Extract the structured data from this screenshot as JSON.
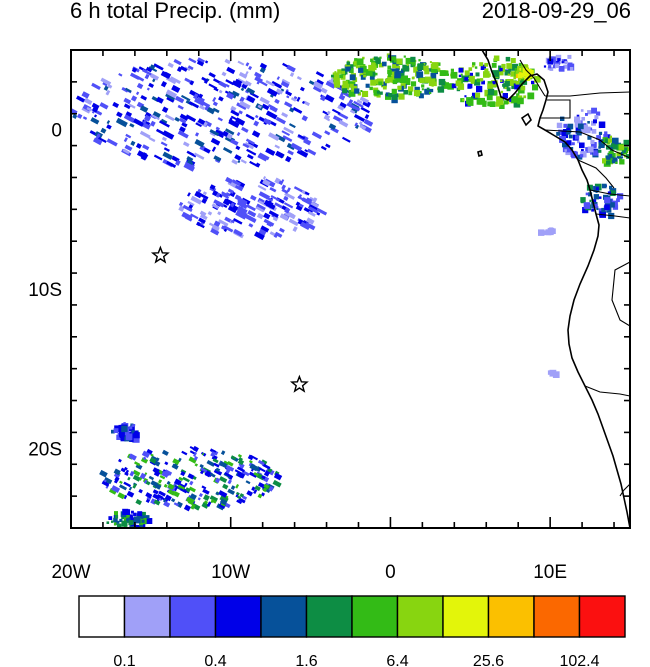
{
  "title": "6 h total Precip. (mm)",
  "valid_time": "2018-09-29_06",
  "map": {
    "lon_range": [
      -20,
      15
    ],
    "lat_range": [
      -25,
      5
    ],
    "x_ticks": [
      {
        "lon": -20,
        "label": "20W"
      },
      {
        "lon": -10,
        "label": "10W"
      },
      {
        "lon": 0,
        "label": "0"
      },
      {
        "lon": 10,
        "label": "10E"
      }
    ],
    "y_ticks": [
      {
        "lat": 0,
        "label": "0"
      },
      {
        "lat": -10,
        "label": "10S"
      },
      {
        "lat": -20,
        "label": "20S"
      }
    ],
    "markers": [
      {
        "name": "star-marker-ascension",
        "lon": -14.4,
        "lat": -7.9
      },
      {
        "name": "star-marker-st-helena",
        "lon": -5.7,
        "lat": -16.0
      }
    ]
  },
  "colorbar": {
    "colors": [
      "#ffffff",
      "#a0a0f8",
      "#5050f8",
      "#0000e8",
      "#06519a",
      "#0d8d44",
      "#33bb16",
      "#88d510",
      "#e3f50a",
      "#fbc000",
      "#fb6800",
      "#fb1010"
    ],
    "labels": [
      {
        "boundary": 1,
        "text": "0.1"
      },
      {
        "boundary": 3,
        "text": "0.4"
      },
      {
        "boundary": 5,
        "text": "1.6"
      },
      {
        "boundary": 7,
        "text": "6.4"
      },
      {
        "boundary": 9,
        "text": "25.6"
      },
      {
        "boundary": 11,
        "text": "102.4"
      }
    ]
  }
}
